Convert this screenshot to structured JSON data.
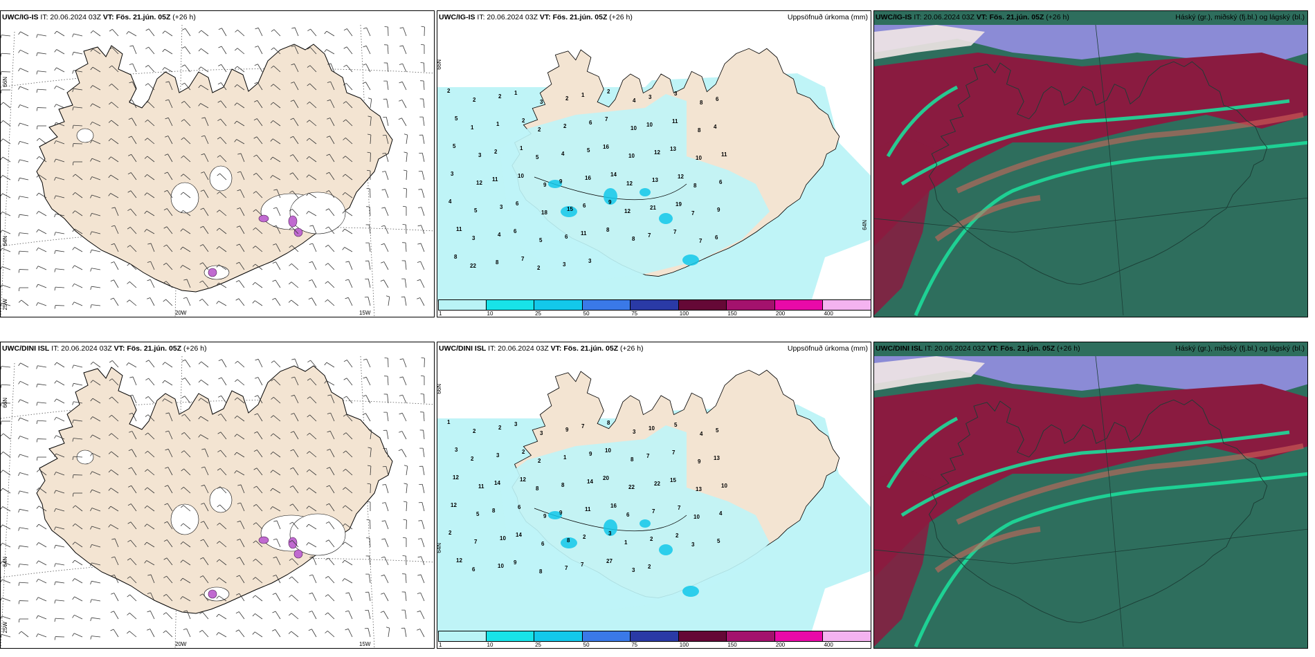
{
  "rows": [
    {
      "model": "UWC/IG-IS",
      "it_label": "IT: 20.06.2024 03Z",
      "vt_label": "VT: Fös. 21.jún. 05Z",
      "lead": "(+26 h)",
      "precip_title": "Uppsöfnuð úrkoma (mm)",
      "cloud_title": "Háský (gr.), miðský (fj.bl.) og lágský (bl.)",
      "precip_values": [
        "2",
        "2",
        "2",
        "1",
        "3",
        "2",
        "1",
        "2",
        "4",
        "3",
        "3",
        "8",
        "6",
        "5",
        "1",
        "1",
        "2",
        "2",
        "2",
        "6",
        "7",
        "10",
        "10",
        "11",
        "8",
        "4",
        "5",
        "3",
        "2",
        "1",
        "5",
        "4",
        "5",
        "16",
        "10",
        "12",
        "13",
        "10",
        "11",
        "3",
        "12",
        "11",
        "10",
        "9",
        "9",
        "16",
        "14",
        "12",
        "13",
        "12",
        "8",
        "6",
        "4",
        "5",
        "3",
        "6",
        "18",
        "15",
        "6",
        "9",
        "12",
        "21",
        "19",
        "7",
        "9",
        "11",
        "3",
        "4",
        "6",
        "5",
        "6",
        "11",
        "8",
        "8",
        "7",
        "7",
        "7",
        "6",
        "8",
        "22",
        "8",
        "7",
        "2",
        "3",
        "3"
      ],
      "cloud_style": "A"
    },
    {
      "model": "UWC/DINI ISL",
      "it_label": "IT: 20.06.2024 03Z",
      "vt_label": "VT: Fös. 21.jún. 05Z",
      "lead": "(+26 h)",
      "precip_title": "Uppsöfnuð úrkoma (mm)",
      "cloud_title": "Háský (gr.), miðský (fj.bl.) og lágský (bl.)",
      "precip_values": [
        "1",
        "2",
        "2",
        "3",
        "3",
        "9",
        "7",
        "8",
        "3",
        "10",
        "5",
        "4",
        "5",
        "3",
        "2",
        "3",
        "2",
        "2",
        "1",
        "9",
        "10",
        "8",
        "7",
        "7",
        "9",
        "13",
        "12",
        "11",
        "14",
        "12",
        "8",
        "8",
        "14",
        "20",
        "22",
        "22",
        "15",
        "13",
        "10",
        "12",
        "5",
        "8",
        "6",
        "9",
        "9",
        "11",
        "16",
        "6",
        "7",
        "7",
        "10",
        "4",
        "2",
        "7",
        "10",
        "14",
        "6",
        "8",
        "2",
        "3",
        "1",
        "2",
        "2",
        "3",
        "5",
        "12",
        "6",
        "10",
        "9",
        "8",
        "7",
        "7",
        "27",
        "3",
        "2"
      ],
      "cloud_style": "B"
    }
  ],
  "wind_panel": {
    "lon_labels": [
      "20W",
      "15W"
    ],
    "lat_labels": [
      "66N",
      "64N",
      "25W"
    ]
  },
  "precip_panel": {
    "lat_label_top": "66N",
    "lat_label_mid": "64N"
  },
  "colorbar": {
    "ticks": [
      "1",
      "10",
      "25",
      "50",
      "75",
      "100",
      "150",
      "200",
      "400"
    ],
    "colors": [
      "#b9f3f6",
      "#18e3e8",
      "#13c8ea",
      "#3a79e8",
      "#2a3aa6",
      "#650836",
      "#a3126d",
      "#e90aa8",
      "#f4b3f0"
    ]
  },
  "colors": {
    "land": "#f3e4d2",
    "sea": "#ffffff",
    "precip_light": "#bff4f7",
    "cloud_high": "#8b8bd6",
    "cloud_mid": "#8a1b40",
    "cloud_low": "#2e6e5d"
  }
}
